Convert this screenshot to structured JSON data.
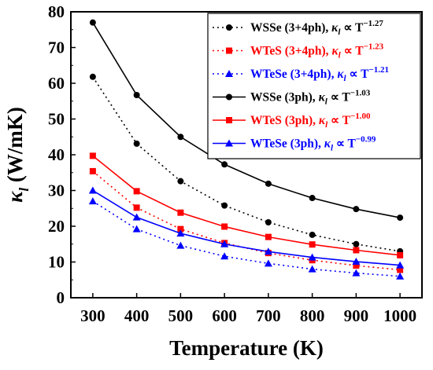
{
  "chart_data": {
    "type": "line",
    "xlabel": "Temperature (K)",
    "ylabel_symbol": "κ",
    "ylabel_sub": "l",
    "ylabel_unit": " (W/mK)",
    "xlim": [
      250,
      1050
    ],
    "ylim": [
      0,
      80
    ],
    "xticks": [
      300,
      400,
      500,
      600,
      700,
      800,
      900,
      1000
    ],
    "yticks": [
      0,
      10,
      20,
      30,
      40,
      50,
      60,
      70,
      80
    ],
    "grid": false,
    "legend_position": "top-right",
    "x": [
      300,
      400,
      500,
      600,
      700,
      800,
      900,
      1000
    ],
    "series": [
      {
        "name": "WSSe (3+4ph), ",
        "exponent": "−1.27",
        "color": "#000000",
        "marker": "circle",
        "dash": "dotted",
        "values": [
          61.8,
          43.1,
          32.6,
          25.8,
          21.1,
          17.6,
          15.0,
          13.0
        ]
      },
      {
        "name": "WTeS (3+4ph), ",
        "exponent": "−1.23",
        "color": "#ff0000",
        "marker": "square",
        "dash": "dotted",
        "values": [
          35.4,
          25.2,
          19.2,
          15.3,
          12.5,
          10.5,
          9.0,
          7.8
        ]
      },
      {
        "name": "WTeSe (3+4ph), ",
        "exponent": "−1.21",
        "color": "#0000ff",
        "marker": "triangle",
        "dash": "dotted",
        "values": [
          27.0,
          19.2,
          14.6,
          11.6,
          9.6,
          8.0,
          6.9,
          6.0
        ]
      },
      {
        "name": "WSSe (3ph), ",
        "exponent": "−1.03",
        "color": "#000000",
        "marker": "circle",
        "dash": "solid",
        "values": [
          77.0,
          56.7,
          45.0,
          37.3,
          31.9,
          27.9,
          24.8,
          22.4
        ]
      },
      {
        "name": "WTeS (3ph), ",
        "exponent": "−1.00",
        "color": "#ff0000",
        "marker": "square",
        "dash": "solid",
        "values": [
          39.7,
          29.8,
          23.8,
          19.9,
          17.0,
          14.9,
          13.3,
          11.9
        ]
      },
      {
        "name": "WTeSe (3ph), ",
        "exponent": "−0.99",
        "color": "#0000ff",
        "marker": "triangle",
        "dash": "solid",
        "values": [
          30.0,
          22.5,
          18.0,
          15.0,
          12.9,
          11.3,
          10.1,
          9.1
        ]
      }
    ],
    "legend_kappa": "κ",
    "legend_sub": "l",
    "legend_prop": " ∝ T"
  }
}
